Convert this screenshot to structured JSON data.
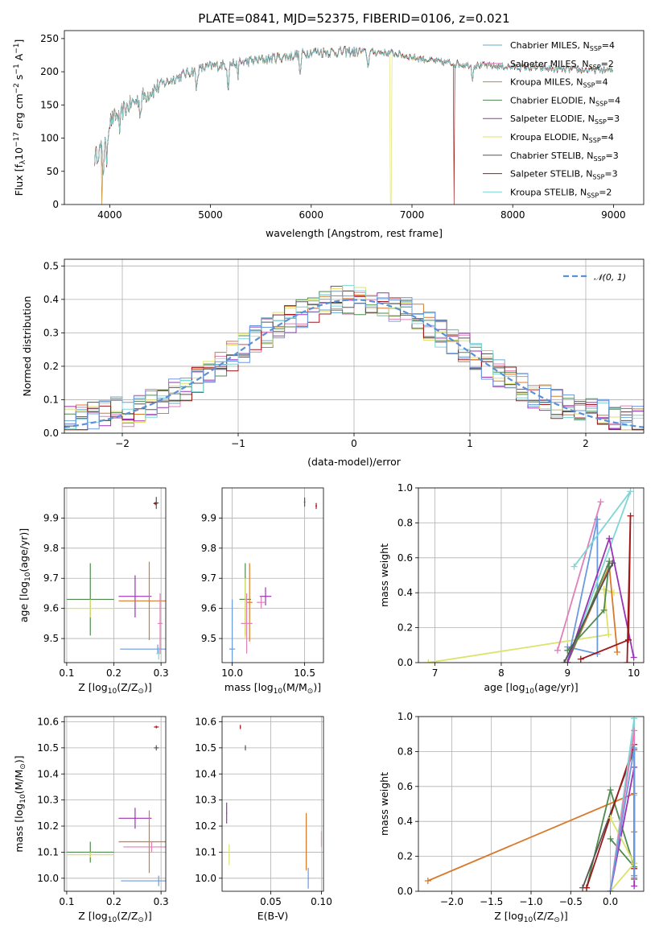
{
  "chart_data": [
    {
      "id": "spectrum",
      "type": "line",
      "title": "PLATE=0841, MJD=52375, FIBERID=0106, z=0.021",
      "xlabel": "wavelength [Angstrom, rest frame]",
      "ylabel_main": "Flux [f",
      "ylabel_sub": "λ",
      "ylabel_rest": "10",
      "ylabel_e1": "−17",
      "ylabel_mid": " erg cm",
      "ylabel_e2": "−2",
      "ylabel_s": " s",
      "ylabel_e3": "−1",
      "ylabel_A": " A",
      "ylabel_e4": "−1",
      "ylabel_end": "]",
      "xlim": [
        3550,
        9300
      ],
      "ylim": [
        0,
        262
      ],
      "xticks": [
        4000,
        5000,
        6000,
        7000,
        8000,
        9000
      ],
      "yticks": [
        0,
        50,
        100,
        150,
        200,
        250
      ],
      "continuum": [
        [
          3850,
          70
        ],
        [
          3950,
          95
        ],
        [
          4000,
          125
        ],
        [
          4200,
          150
        ],
        [
          4500,
          180
        ],
        [
          4800,
          200
        ],
        [
          5000,
          208
        ],
        [
          5200,
          212
        ],
        [
          5500,
          218
        ],
        [
          5800,
          224
        ],
        [
          6000,
          230
        ],
        [
          6300,
          230
        ],
        [
          6600,
          230
        ],
        [
          6800,
          228
        ],
        [
          7000,
          222
        ],
        [
          7300,
          214
        ],
        [
          7600,
          210
        ],
        [
          8000,
          207
        ],
        [
          8300,
          205
        ],
        [
          8600,
          203
        ],
        [
          9000,
          202
        ]
      ],
      "legend": [
        {
          "name": "Chabrier MILES, N",
          "sub": "SSP",
          "val": "=4",
          "color": "#6aaecf"
        },
        {
          "name": "Salpeter MILES, N",
          "sub": "SSP",
          "val": "=2",
          "color": "#e07fb8"
        },
        {
          "name": "Kroupa MILES, N",
          "sub": "SSP",
          "val": "=4",
          "color": "#c08a2a"
        },
        {
          "name": "Chabrier ELODIE, N",
          "sub": "SSP",
          "val": "=4",
          "color": "#4f8a4f"
        },
        {
          "name": "Salpeter ELODIE, N",
          "sub": "SSP",
          "val": "=3",
          "color": "#9b32b5"
        },
        {
          "name": "Kroupa ELODIE, N",
          "sub": "SSP",
          "val": "=4",
          "color": "#dde26a"
        },
        {
          "name": "Chabrier STELIB, N",
          "sub": "SSP",
          "val": "=3",
          "color": "#555555"
        },
        {
          "name": "Salpeter STELIB, N",
          "sub": "SSP",
          "val": "=3",
          "color": "#a01818"
        },
        {
          "name": "Kroupa STELIB, N",
          "sub": "SSP",
          "val": "=2",
          "color": "#7fd6d6"
        }
      ]
    },
    {
      "id": "residuals",
      "type": "line",
      "xlabel": "(data-model)/error",
      "ylabel": "Normed distribution",
      "xlim": [
        -2.5,
        2.5
      ],
      "ylim": [
        0,
        0.52
      ],
      "xticks": [
        -2,
        -1,
        0,
        1,
        2
      ],
      "xtick_labels": [
        "−2",
        "−1",
        "0",
        "1",
        "2"
      ],
      "yticks": [
        0,
        0.1,
        0.2,
        0.3,
        0.4,
        0.5
      ],
      "ytick_labels": [
        "0.0",
        "0.1",
        "0.2",
        "0.3",
        "0.4",
        "0.5"
      ],
      "legend": [
        {
          "name": "𝒩(0, 1)",
          "color": "#5b8fd6"
        }
      ],
      "bin_width": 0.1,
      "series_colors": [
        "#6aaecf",
        "#e07fb8",
        "#d9792a",
        "#4f8a4f",
        "#9b32b5",
        "#dde26a",
        "#555555",
        "#a01818",
        "#7fd6d6",
        "#6a9ae0"
      ]
    },
    {
      "id": "age_vs_Z",
      "type": "scatter",
      "xlabel": "Z [log",
      "xlabel_sub": "10",
      "xlabel_rest": "(Z/Z",
      "xlabel_sub2": "⊙",
      "xlabel_end": ")]",
      "ylabel": "age  [log",
      "ylabel_sub": "10",
      "ylabel_rest": "(age/yr)]",
      "xlim": [
        0.095,
        0.31
      ],
      "ylim": [
        9.42,
        10.0
      ],
      "xticks": [
        0.1,
        0.2,
        0.3
      ],
      "xtick_labels": [
        "0.1",
        "0.2",
        "0.3"
      ],
      "yticks": [
        9.5,
        9.6,
        9.7,
        9.8,
        9.9
      ],
      "ytick_labels": [
        "9.5",
        "9.6",
        "9.7",
        "9.8",
        "9.9"
      ],
      "points": [
        {
          "x": 0.15,
          "xerr": 0.05,
          "y": 9.63,
          "yerr": 0.12,
          "color": "#4f8a4f"
        },
        {
          "x": 0.15,
          "xerr": 0.05,
          "y": 9.6,
          "yerr": 0.03,
          "color": "#dde26a"
        },
        {
          "x": 0.245,
          "xerr": 0.035,
          "y": 9.64,
          "yerr": 0.07,
          "color": "#9b32b5"
        },
        {
          "x": 0.275,
          "xerr": 0.065,
          "y": 9.625,
          "yerr": 0.13,
          "color": "#d9792a"
        },
        {
          "x": 0.293,
          "xerr": 0.08,
          "y": 9.465,
          "yerr": 0.015,
          "color": "#6a9ae0"
        },
        {
          "x": 0.298,
          "xerr": 0.005,
          "y": 9.55,
          "yerr": 0.1,
          "color": "#e07fb8"
        },
        {
          "x": 0.295,
          "xerr": 0.005,
          "y": 9.45,
          "yerr": 0.02,
          "color": "#7fd6d6"
        },
        {
          "x": 0.29,
          "xerr": 0.005,
          "y": 9.95,
          "yerr": 0.02,
          "color": "#555555"
        },
        {
          "x": 0.288,
          "xerr": 0.004,
          "y": 9.948,
          "yerr": 0.005,
          "color": "#a01818"
        }
      ]
    },
    {
      "id": "age_vs_mass",
      "type": "scatter",
      "xlabel": "mass [log",
      "xlabel_sub": "10",
      "xlabel_rest": "(M/M",
      "xlabel_sub2": "⊙",
      "xlabel_end": ")]",
      "xlim": [
        9.93,
        10.63
      ],
      "ylim": [
        9.42,
        10.0
      ],
      "xticks": [
        10.0,
        10.5
      ],
      "xtick_labels": [
        "10.0",
        "10.5"
      ],
      "yticks": [
        9.5,
        9.6,
        9.7,
        9.8,
        9.9
      ],
      "ytick_labels": [
        "9.5",
        "9.6",
        "9.7",
        "9.8",
        "9.9"
      ],
      "points": [
        {
          "x": 10.0,
          "xerr": 0.02,
          "y": 9.465,
          "yerr": 0.165,
          "color": "#6a9ae0"
        },
        {
          "x": 10.09,
          "xerr": 0.04,
          "y": 9.63,
          "yerr": 0.12,
          "color": "#4f8a4f"
        },
        {
          "x": 10.09,
          "xerr": 0.04,
          "y": 9.6,
          "yerr": 0.1,
          "color": "#dde26a"
        },
        {
          "x": 10.12,
          "xerr": 0.02,
          "y": 9.62,
          "yerr": 0.13,
          "color": "#d9792a"
        },
        {
          "x": 10.1,
          "xerr": 0.04,
          "y": 9.55,
          "yerr": 0.1,
          "color": "#e07fb8"
        },
        {
          "x": 10.23,
          "xerr": 0.04,
          "y": 9.64,
          "yerr": 0.03,
          "color": "#9b32b5"
        },
        {
          "x": 10.2,
          "xerr": 0.03,
          "y": 9.62,
          "yerr": 0.02,
          "color": "#e07fb8"
        },
        {
          "x": 10.5,
          "xerr": 0.005,
          "y": 9.953,
          "yerr": 0.015,
          "color": "#555555"
        },
        {
          "x": 10.58,
          "xerr": 0.005,
          "y": 9.94,
          "yerr": 0.01,
          "color": "#a01818"
        }
      ]
    },
    {
      "id": "weight_vs_age",
      "type": "line",
      "xlabel": "age  [log",
      "xlabel_sub": "10",
      "xlabel_rest": "(age/yr)]",
      "ylabel": "mass weight",
      "xlim": [
        6.75,
        10.15
      ],
      "ylim": [
        0,
        1.0
      ],
      "xticks": [
        7,
        8,
        9,
        10
      ],
      "xtick_labels": [
        "7",
        "8",
        "9",
        "10"
      ],
      "yticks": [
        0,
        0.2,
        0.4,
        0.6,
        0.8,
        1.0
      ],
      "ytick_labels": [
        "0.0",
        "0.2",
        "0.4",
        "0.6",
        "0.8",
        "1.0"
      ],
      "series": [
        {
          "color": "#dde26a",
          "x": [
            6.9,
            9.62,
            9.55,
            9.7
          ],
          "y": [
            0.0,
            0.16,
            0.42,
            0.4
          ]
        },
        {
          "color": "#e07fb8",
          "x": [
            8.85,
            9.5
          ],
          "y": [
            0.07,
            0.92
          ]
        },
        {
          "color": "#6a9ae0",
          "x": [
            9.0,
            9.45,
            9.45,
            9.0
          ],
          "y": [
            0.0,
            0.82,
            0.05,
            0.09
          ]
        },
        {
          "color": "#7fd6d6",
          "x": [
            9.0,
            9.95,
            9.1
          ],
          "y": [
            0.0,
            0.98,
            0.55
          ]
        },
        {
          "color": "#d9792a",
          "x": [
            9.0,
            9.63,
            9.75
          ],
          "y": [
            0.0,
            0.55,
            0.06
          ]
        },
        {
          "color": "#4f8a4f",
          "x": [
            9.0,
            9.63,
            9.55,
            9.0
          ],
          "y": [
            0.0,
            0.58,
            0.3,
            0.07
          ]
        },
        {
          "color": "#9b32b5",
          "x": [
            9.0,
            9.63,
            10.0
          ],
          "y": [
            0.0,
            0.71,
            0.03
          ]
        },
        {
          "color": "#555555",
          "x": [
            8.95,
            9.68
          ],
          "y": [
            0.0,
            0.57
          ]
        },
        {
          "color": "#a01818",
          "x": [
            9.2,
            9.92,
            9.95,
            9.9
          ],
          "y": [
            0.02,
            0.13,
            0.84,
            0.0
          ]
        }
      ]
    },
    {
      "id": "mass_vs_Z",
      "type": "scatter",
      "xlabel": "Z [log",
      "xlabel_sub": "10",
      "xlabel_rest": "(Z/Z",
      "xlabel_sub2": "⊙",
      "xlabel_end": ")]",
      "ylabel": "mass [log",
      "ylabel_sub": "10",
      "ylabel_rest": "(M/M",
      "ylabel_sub2": "⊙",
      "ylabel_end": ")]",
      "xlim": [
        0.095,
        0.31
      ],
      "ylim": [
        9.95,
        10.62
      ],
      "xticks": [
        0.1,
        0.2,
        0.3
      ],
      "xtick_labels": [
        "0.1",
        "0.2",
        "0.3"
      ],
      "yticks": [
        10.0,
        10.1,
        10.2,
        10.3,
        10.4,
        10.5,
        10.6
      ],
      "ytick_labels": [
        "10.0",
        "10.1",
        "10.2",
        "10.3",
        "10.4",
        "10.5",
        "10.6"
      ],
      "points": [
        {
          "x": 0.15,
          "xerr": 0.05,
          "y": 10.1,
          "yerr": 0.04,
          "color": "#4f8a4f"
        },
        {
          "x": 0.15,
          "xerr": 0.05,
          "y": 10.09,
          "yerr": 0.01,
          "color": "#dde26a"
        },
        {
          "x": 0.245,
          "xerr": 0.035,
          "y": 10.23,
          "yerr": 0.04,
          "color": "#9b32b5"
        },
        {
          "x": 0.275,
          "xerr": 0.065,
          "y": 10.14,
          "yerr": 0.12,
          "color": "#d9792a"
        },
        {
          "x": 0.28,
          "xerr": 0.06,
          "y": 10.12,
          "yerr": 0.02,
          "color": "#e07fb8"
        },
        {
          "x": 0.295,
          "xerr": 0.08,
          "y": 9.99,
          "yerr": 0.02,
          "color": "#6a9ae0"
        },
        {
          "x": 0.29,
          "xerr": 0.005,
          "y": 10.5,
          "yerr": 0.01,
          "color": "#555555"
        },
        {
          "x": 0.29,
          "xerr": 0.005,
          "y": 10.58,
          "yerr": 0.005,
          "color": "#a01818"
        }
      ]
    },
    {
      "id": "mass_vs_EBV",
      "type": "scatter",
      "xlabel": "E(B-V)",
      "xlim": [
        0.002,
        0.102
      ],
      "ylim": [
        9.95,
        10.62
      ],
      "xticks": [
        0.05,
        0.1
      ],
      "xtick_labels": [
        "0.05",
        "0.10"
      ],
      "yticks": [
        10.0,
        10.1,
        10.2,
        10.3,
        10.4,
        10.5,
        10.6
      ],
      "ytick_labels": [
        "10.0",
        "10.1",
        "10.2",
        "10.3",
        "10.4",
        "10.5",
        "10.6"
      ],
      "points": [
        {
          "x": 0.0065,
          "xerr": 0.0005,
          "y": 10.25,
          "yerr": 0.04,
          "color": "#9b32b5"
        },
        {
          "x": 0.009,
          "xerr": 0.0005,
          "y": 10.09,
          "yerr": 0.04,
          "color": "#dde26a"
        },
        {
          "x": 0.02,
          "xerr": 0.0005,
          "y": 10.58,
          "yerr": 0.008,
          "color": "#a01818"
        },
        {
          "x": 0.025,
          "xerr": 0.0005,
          "y": 10.5,
          "yerr": 0.01,
          "color": "#555555"
        },
        {
          "x": 0.085,
          "xerr": 0.0005,
          "y": 10.14,
          "yerr": 0.11,
          "color": "#d9792a"
        },
        {
          "x": 0.087,
          "xerr": 0.0005,
          "y": 10.0,
          "yerr": 0.04,
          "color": "#6a9ae0"
        },
        {
          "x": 0.1,
          "xerr": 0.0005,
          "y": 10.15,
          "yerr": 0.03,
          "color": "#e07fb8"
        }
      ]
    },
    {
      "id": "weight_vs_Z",
      "type": "line",
      "xlabel": "Z [log",
      "xlabel_sub": "10",
      "xlabel_rest": "(Z/Z",
      "xlabel_sub2": "⊙",
      "xlabel_end": ")]",
      "ylabel": "mass weight",
      "xlim": [
        -2.42,
        0.42
      ],
      "ylim": [
        0,
        1.0
      ],
      "xticks": [
        -2.0,
        -1.5,
        -1.0,
        -0.5,
        0.0
      ],
      "xtick_labels": [
        "−2.0",
        "−1.5",
        "−1.0",
        "−0.5",
        "0.0"
      ],
      "yticks": [
        0,
        0.2,
        0.4,
        0.6,
        0.8,
        1.0
      ],
      "ytick_labels": [
        "0.0",
        "0.2",
        "0.4",
        "0.6",
        "0.8",
        "1.0"
      ],
      "series": [
        {
          "color": "#d9792a",
          "x": [
            -2.3,
            0.3,
            0.3,
            0.3
          ],
          "y": [
            0.06,
            0.56,
            0.34,
            0.16
          ]
        },
        {
          "color": "#4f8a4f",
          "x": [
            -0.3,
            0.0,
            0.3,
            0.0
          ],
          "y": [
            0.02,
            0.58,
            0.14,
            0.3
          ]
        },
        {
          "color": "#555555",
          "x": [
            -0.35,
            0.3,
            0.3
          ],
          "y": [
            0.02,
            0.81,
            0.07
          ]
        },
        {
          "color": "#a01818",
          "x": [
            -0.3,
            0.3,
            0.3
          ],
          "y": [
            0.02,
            0.84,
            0.13
          ]
        },
        {
          "color": "#7fd6d6",
          "x": [
            0.0,
            0.3,
            0.3
          ],
          "y": [
            0.0,
            0.99,
            0.55
          ]
        },
        {
          "color": "#9b32b5",
          "x": [
            0.0,
            0.3,
            0.3
          ],
          "y": [
            0.0,
            0.71,
            0.03
          ]
        },
        {
          "color": "#dde26a",
          "x": [
            0.0,
            0.3,
            0.0
          ],
          "y": [
            0.0,
            0.16,
            0.42
          ]
        },
        {
          "color": "#e07fb8",
          "x": [
            0.0,
            0.3,
            0.3
          ],
          "y": [
            0.0,
            0.92,
            0.08
          ]
        },
        {
          "color": "#6a9ae0",
          "x": [
            0.0,
            0.3,
            0.3
          ],
          "y": [
            0.0,
            0.82,
            0.09
          ]
        }
      ]
    }
  ]
}
